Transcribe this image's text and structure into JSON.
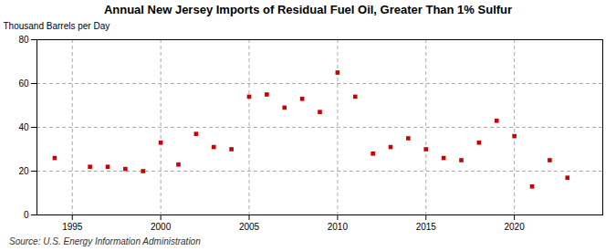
{
  "chart_data": {
    "type": "scatter",
    "title": "Annual New Jersey Imports of Residual Fuel Oil, Greater Than 1% Sulfur",
    "ylabel": "Thousand Barrels per Day",
    "source": "Source: U.S. Energy Information Administration",
    "x": [
      1994,
      1996,
      1997,
      1998,
      1999,
      2000,
      2001,
      2002,
      2003,
      2004,
      2005,
      2006,
      2007,
      2008,
      2009,
      2010,
      2011,
      2012,
      2013,
      2014,
      2015,
      2016,
      2017,
      2018,
      2019,
      2020,
      2021,
      2022,
      2023
    ],
    "values": [
      26,
      22,
      22,
      21,
      20,
      33,
      23,
      37,
      31,
      30,
      54,
      55,
      49,
      53,
      47,
      65,
      54,
      28,
      31,
      35,
      30,
      26,
      25,
      33,
      43,
      36,
      13,
      25,
      17
    ],
    "color": "#cc0000",
    "marker": "square",
    "xlim": [
      1993,
      2025
    ],
    "ylim": [
      0,
      80
    ],
    "xticks": [
      1995,
      2000,
      2005,
      2010,
      2015,
      2020
    ],
    "yticks": [
      0,
      20,
      40,
      60,
      80
    ],
    "grid": true
  }
}
